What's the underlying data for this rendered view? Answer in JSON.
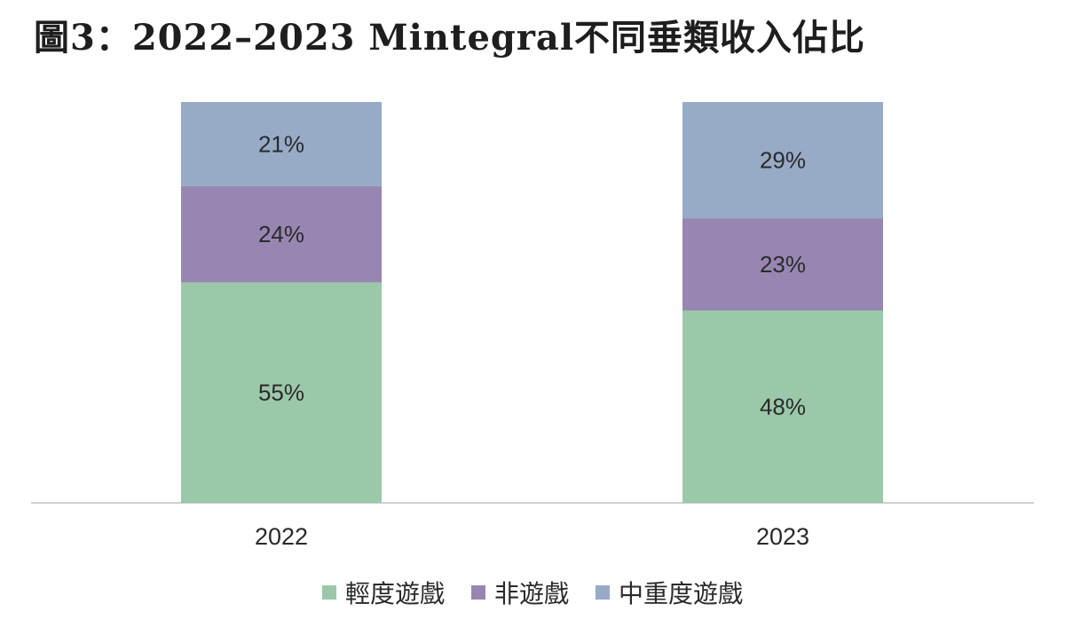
{
  "title": "圖3：2022–2023 Mintegral不同垂類收入佔比",
  "colors": {
    "輕度遊戲": "#9bc8a9",
    "非遊戲": "#9886b2",
    "中重度遊戲": "#97abc7",
    "axis": "#d0d0d0"
  },
  "chart_data": {
    "type": "bar",
    "stacked": true,
    "categories": [
      "2022",
      "2023"
    ],
    "series": [
      {
        "name": "輕度遊戲",
        "values": [
          55,
          48
        ],
        "labels": [
          "55%",
          "48%"
        ]
      },
      {
        "name": "非遊戲",
        "values": [
          24,
          23
        ],
        "labels": [
          "24%",
          "23%"
        ]
      },
      {
        "name": "中重度遊戲",
        "values": [
          21,
          29
        ],
        "labels": [
          "21%",
          "29%"
        ]
      }
    ],
    "legend": [
      "輕度遊戲",
      "非遊戲",
      "中重度遊戲"
    ],
    "legend_position": "bottom",
    "grid": false
  }
}
